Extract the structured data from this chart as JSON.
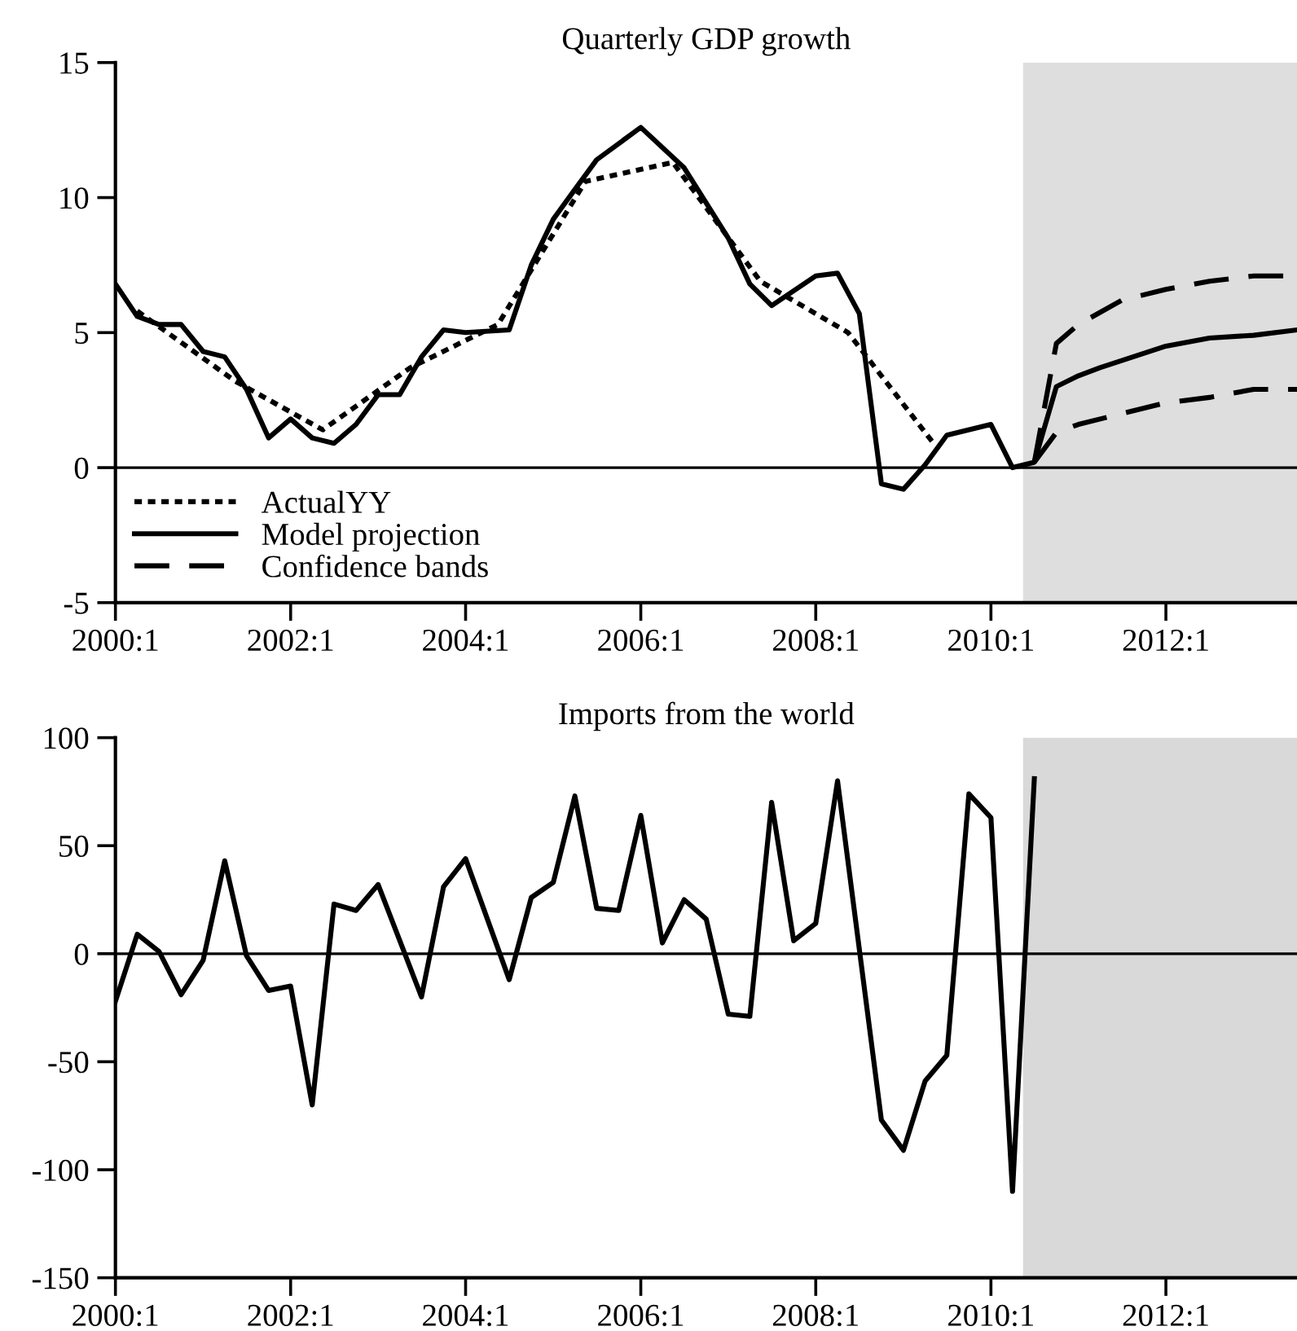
{
  "chart_data": [
    {
      "type": "line",
      "title": "Quarterly GDP growth",
      "xlim": [
        "2000-01-01",
        "2013-07-01"
      ],
      "ylim": [
        -5,
        15
      ],
      "yticks": [
        -5,
        0,
        5,
        10,
        15
      ],
      "xticks": [
        {
          "value": "2000-01-01",
          "label": "2000:1"
        },
        {
          "value": "2002-01-01",
          "label": "2002:1"
        },
        {
          "value": "2004-01-01",
          "label": "2004:1"
        },
        {
          "value": "2006-01-01",
          "label": "2006:1"
        },
        {
          "value": "2008-01-01",
          "label": "2008:1"
        },
        {
          "value": "2010-01-01",
          "label": "2010:1"
        },
        {
          "value": "2012-01-01",
          "label": "2012:1"
        }
      ],
      "grid": false,
      "legend": "bottom left",
      "marker": "none",
      "ref_lines": [
        {
          "axis": "y",
          "value": 0,
          "color": "#000000",
          "line_style": "solid"
        }
      ],
      "bands": [
        {
          "axis": "x",
          "from": "2010-05-15",
          "to": "2013-07-01",
          "color": "#dedede"
        }
      ],
      "series": [
        {
          "name": "ActualYY",
          "color": "#000000",
          "line_style": "dotted",
          "x": [
            "2000-04-01",
            "2001-05-15",
            "2002-05-15",
            "2003-05-15",
            "2004-05-15",
            "2005-05-15",
            "2006-05-15",
            "2007-05-15",
            "2008-05-15",
            "2009-05-15"
          ],
          "values": [
            5.8,
            3.2,
            1.4,
            3.7,
            5.3,
            10.6,
            11.3,
            6.9,
            5.0,
            0.8
          ]
        },
        {
          "name": "Model projection",
          "color": "#000000",
          "line_style": "solid",
          "x": [
            "2000-01-01",
            "2000-04-01",
            "2000-07-01",
            "2000-10-01",
            "2001-01-01",
            "2001-04-01",
            "2001-07-01",
            "2001-10-01",
            "2002-01-01",
            "2002-04-01",
            "2002-07-01",
            "2002-10-01",
            "2003-01-01",
            "2003-04-01",
            "2003-07-01",
            "2003-10-01",
            "2004-01-01",
            "2004-07-01",
            "2004-10-01",
            "2005-01-01",
            "2005-04-01",
            "2005-07-01",
            "2006-01-01",
            "2006-07-01",
            "2007-01-01",
            "2007-04-01",
            "2007-07-01",
            "2008-01-01",
            "2008-04-01",
            "2008-07-01",
            "2008-10-01",
            "2009-01-01",
            "2009-04-01",
            "2009-07-01",
            "2010-01-01",
            "2010-04-01",
            "2010-07-01",
            "2010-10-01",
            "2011-01-01",
            "2011-04-01",
            "2012-01-01",
            "2012-07-01",
            "2013-01-01",
            "2013-07-01"
          ],
          "values": [
            6.8,
            5.6,
            5.3,
            5.3,
            4.3,
            4.1,
            2.9,
            1.1,
            1.8,
            1.1,
            0.9,
            1.6,
            2.7,
            2.7,
            4.1,
            5.1,
            5.0,
            5.1,
            7.5,
            9.2,
            10.3,
            11.4,
            12.6,
            11.1,
            8.5,
            6.8,
            6.0,
            7.1,
            7.2,
            5.7,
            -0.6,
            -0.8,
            0.1,
            1.2,
            1.6,
            0.0,
            0.2,
            3.0,
            3.4,
            3.7,
            4.5,
            4.8,
            4.9,
            5.1
          ]
        },
        {
          "name": "Confidence bands",
          "color": "#000000",
          "line_style": "dashed",
          "x": [
            "2010-07-01",
            "2010-10-01",
            "2011-01-01",
            "2011-07-01",
            "2012-01-01",
            "2012-07-01",
            "2013-01-01",
            "2013-07-01"
          ],
          "values": [
            0.2,
            4.6,
            5.3,
            6.2,
            6.6,
            6.9,
            7.1,
            7.1
          ]
        },
        {
          "color": "#000000",
          "line_style": "dashed",
          "x": [
            "2010-07-01",
            "2010-10-01",
            "2011-01-01",
            "2011-07-01",
            "2012-01-01",
            "2012-07-01",
            "2013-01-01",
            "2013-07-01"
          ],
          "values": [
            0.2,
            1.3,
            1.6,
            2.0,
            2.4,
            2.6,
            2.9,
            2.9
          ]
        }
      ]
    },
    {
      "type": "line",
      "title": "Imports from the world",
      "xlim": [
        "2000-01-01",
        "2013-07-01"
      ],
      "ylim": [
        -150,
        100
      ],
      "yticks": [
        -150,
        -100,
        -50,
        0,
        50,
        100
      ],
      "xticks": [
        {
          "value": "2000-01-01",
          "label": "2000:1"
        },
        {
          "value": "2002-01-01",
          "label": "2002:1"
        },
        {
          "value": "2004-01-01",
          "label": "2004:1"
        },
        {
          "value": "2006-01-01",
          "label": "2006:1"
        },
        {
          "value": "2008-01-01",
          "label": "2008:1"
        },
        {
          "value": "2010-01-01",
          "label": "2010:1"
        },
        {
          "value": "2012-01-01",
          "label": "2012:1"
        }
      ],
      "grid": false,
      "legend": false,
      "marker": "none",
      "ref_lines": [
        {
          "axis": "y",
          "value": 0,
          "color": "#000000",
          "line_style": "solid"
        }
      ],
      "bands": [
        {
          "axis": "x",
          "from": "2010-05-15",
          "to": "2013-07-01",
          "color": "#d9d9d9"
        }
      ],
      "series": [
        {
          "color": "#000000",
          "line_style": "solid",
          "x": [
            "2000-01-01",
            "2000-04-01",
            "2000-07-01",
            "2000-10-01",
            "2001-01-01",
            "2001-04-01",
            "2001-07-01",
            "2001-10-01",
            "2002-01-01",
            "2002-04-01",
            "2002-07-01",
            "2002-10-01",
            "2003-01-01",
            "2003-07-01",
            "2003-10-01",
            "2004-01-01",
            "2004-07-01",
            "2004-10-01",
            "2005-01-01",
            "2005-04-01",
            "2005-07-01",
            "2005-10-01",
            "2006-01-01",
            "2006-04-01",
            "2006-07-01",
            "2006-10-01",
            "2007-01-01",
            "2007-04-01",
            "2007-07-01",
            "2007-10-01",
            "2008-01-01",
            "2008-04-01",
            "2008-10-01",
            "2009-01-01",
            "2009-04-01",
            "2009-07-01",
            "2009-10-01",
            "2010-01-01",
            "2010-04-01",
            "2010-07-01"
          ],
          "values": [
            -22,
            9,
            1,
            -19,
            -3,
            43,
            -1,
            -17,
            -15,
            -70,
            23,
            20,
            32,
            -20,
            31,
            44,
            -12,
            26,
            33,
            73,
            21,
            20,
            64,
            5,
            25,
            16,
            -28,
            -29,
            70,
            6,
            14,
            80,
            -77,
            -91,
            -59,
            -47,
            74,
            63,
            -110,
            81
          ]
        }
      ]
    }
  ]
}
